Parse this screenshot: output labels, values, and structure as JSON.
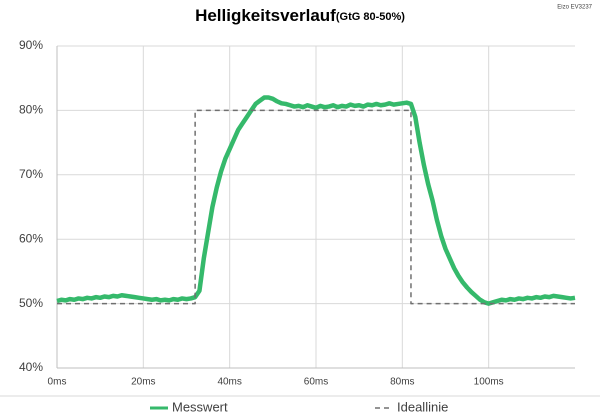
{
  "chart_data": {
    "type": "line",
    "title": "Helligkeitsverlauf",
    "subtitle": "(GtG 80-50%)",
    "annotation": "Eizo EV3237",
    "xlim": [
      0,
      120
    ],
    "xticks": [
      {
        "value": 0,
        "label": "0ms"
      },
      {
        "value": 20,
        "label": "20ms"
      },
      {
        "value": 40,
        "label": "40ms"
      },
      {
        "value": 60,
        "label": "60ms"
      },
      {
        "value": 80,
        "label": "80ms"
      },
      {
        "value": 100,
        "label": "100ms"
      }
    ],
    "ylim": [
      40,
      90
    ],
    "yticks": [
      {
        "value": 40,
        "label": "40%"
      },
      {
        "value": 50,
        "label": "50%"
      },
      {
        "value": 60,
        "label": "60%"
      },
      {
        "value": 70,
        "label": "70%"
      },
      {
        "value": 80,
        "label": "80%"
      },
      {
        "value": 90,
        "label": "90%"
      }
    ],
    "grid": true,
    "legend": "bottom",
    "series": [
      {
        "name": "Messwert",
        "color": "#35b96b",
        "dashed": false,
        "x": [
          0,
          1,
          2,
          3,
          4,
          5,
          6,
          7,
          8,
          9,
          10,
          11,
          12,
          13,
          14,
          15,
          16,
          17,
          18,
          19,
          20,
          21,
          22,
          23,
          24,
          25,
          26,
          27,
          28,
          29,
          30,
          31,
          32,
          33,
          34,
          35,
          36,
          37,
          38,
          39,
          40,
          41,
          42,
          43,
          44,
          45,
          46,
          47,
          48,
          49,
          50,
          51,
          52,
          53,
          54,
          55,
          56,
          57,
          58,
          59,
          60,
          61,
          62,
          63,
          64,
          65,
          66,
          67,
          68,
          69,
          70,
          71,
          72,
          73,
          74,
          75,
          76,
          77,
          78,
          79,
          80,
          81,
          82,
          83,
          84,
          85,
          86,
          87,
          88,
          89,
          90,
          91,
          92,
          93,
          94,
          95,
          96,
          97,
          98,
          99,
          100,
          101,
          102,
          103,
          104,
          105,
          106,
          107,
          108,
          109,
          110,
          111,
          112,
          113,
          114,
          115,
          116,
          117,
          118,
          119,
          120
        ],
        "values": [
          50.4,
          50.6,
          50.5,
          50.7,
          50.6,
          50.8,
          50.7,
          50.9,
          50.8,
          51,
          50.9,
          51.1,
          51,
          51.2,
          51.1,
          51.3,
          51.2,
          51.1,
          51,
          50.9,
          50.8,
          50.7,
          50.6,
          50.7,
          50.5,
          50.6,
          50.5,
          50.7,
          50.6,
          50.8,
          50.7,
          50.8,
          51,
          52,
          57,
          61,
          65,
          68,
          70.5,
          72.5,
          74,
          75.5,
          77,
          78,
          79,
          80,
          81,
          81.5,
          82,
          82,
          81.8,
          81.4,
          81.1,
          81,
          80.8,
          80.6,
          80.7,
          80.5,
          80.8,
          80.6,
          80.4,
          80.7,
          80.5,
          80.6,
          80.8,
          80.5,
          80.7,
          80.6,
          80.9,
          80.7,
          80.8,
          80.6,
          80.9,
          80.8,
          81,
          80.8,
          80.9,
          81.1,
          80.9,
          81,
          81.1,
          81.2,
          81,
          79,
          75,
          71.5,
          68.5,
          66,
          63,
          60.5,
          58.5,
          57,
          55.5,
          54.3,
          53.3,
          52.5,
          51.8,
          51.2,
          50.6,
          50.2,
          50,
          50.2,
          50.4,
          50.6,
          50.5,
          50.7,
          50.6,
          50.8,
          50.7,
          50.9,
          50.8,
          51,
          50.9,
          51.1,
          51,
          51.2,
          51.1,
          51,
          50.9,
          50.8,
          50.9
        ]
      },
      {
        "name": "Ideallinie",
        "color": "#707070",
        "dashed": true,
        "x": [
          0,
          32,
          32,
          82,
          82,
          120
        ],
        "values": [
          50,
          50,
          80,
          80,
          50,
          50
        ]
      }
    ]
  }
}
